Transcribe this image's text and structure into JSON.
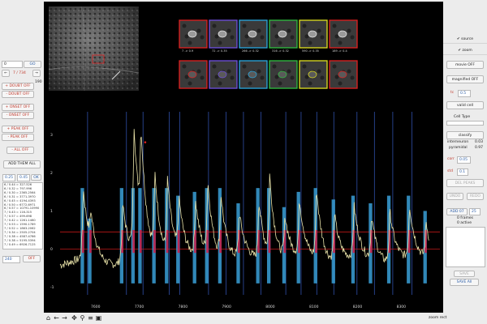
{
  "left": {
    "frame_left_value": "0",
    "go_label": "GO",
    "nav_prev": "←",
    "nav_next": "→",
    "frame_counter": "7 / 734",
    "side_value": "190",
    "doubt_on_label": "+ DOUBT OFF",
    "doubt_off_label": "- DOUBT OFF",
    "onset_on_label": "+ ONSET OFF",
    "onset_off_label": "- ONSET OFF",
    "peak_on_label": "+ PEAK OFF",
    "peak_off_label": "- PEAK OFF",
    "all_off_label": "- ALL OFF",
    "add_all_label": "ADD THEM ALL",
    "thresh_low": "0.25",
    "thresh_high": "0.45",
    "ok_label": "OK",
    "list_rows": [
      "6 / 0.44 = 327-526",
      "6 / 0.32 = 797-996",
      "6 / 0.30 = 2365-2564",
      "6 / 0.31 = 3771-3970",
      "6 / 0.45 = 4194-4393",
      "6 / 0.50 = 6772-6971",
      "6 / 0.57 = 10791-10990",
      "7 / 0.43 = 116-315",
      "7 / 0.57 = 499-698",
      "7 / 0.42 = 1261-1460",
      "7 / 0.53 = 1590-1789",
      "7 / 0.52 = 1863-2062",
      "7 / 0.34 = 2505-2704",
      "7 / 0.38 = 4587-4786",
      "7 / 0.38 = 5195-5394",
      "7 / 0.49 = 6926-7125"
    ],
    "bottom_value": "240",
    "off_label": "OFF"
  },
  "thumbnails": {
    "top_row": [
      "7 -> 0.9",
      "72 -> 0.35",
      "266 -> 0.32",
      "316 -> 0.32",
      "590 -> 0.35",
      "189 -> 0.4"
    ],
    "border_colors": [
      "#e02020",
      "#7050e0",
      "#2aa9e0",
      "#30c040",
      "#e0e020",
      "#e02020"
    ]
  },
  "chart_data": {
    "type": "line",
    "x_ticks": [
      "7600",
      "7700",
      "7800",
      "7900",
      "8000",
      "8100",
      "8200",
      "8300"
    ],
    "y_ticks": [
      "3",
      "2",
      "1",
      "0",
      "-1"
    ],
    "ylim": [
      -1.2,
      3.6
    ],
    "xlim": [
      7520,
      8390
    ],
    "series": [
      {
        "color": "#e8e2a8",
        "peaks": [
          [
            7573,
            1.9
          ],
          [
            7590,
            0.8
          ],
          [
            7663,
            1.6
          ],
          [
            7689,
            3.4
          ],
          [
            7705,
            2.4
          ],
          [
            7737,
            2.1
          ],
          [
            7766,
            2.0
          ],
          [
            7792,
            1.4
          ],
          [
            7830,
            1.5
          ],
          [
            7858,
            2.0
          ],
          [
            7888,
            1.7
          ],
          [
            7930,
            1.2
          ],
          [
            7975,
            1.6
          ],
          [
            8000,
            2.1
          ],
          [
            8035,
            1.1
          ],
          [
            8068,
            1.5
          ],
          [
            8107,
            1.9
          ],
          [
            8148,
            1.3
          ],
          [
            8193,
            1.4
          ],
          [
            8233,
            1.2
          ],
          [
            8275,
            1.4
          ],
          [
            8320,
            1.4
          ],
          [
            8358,
            1.0
          ]
        ]
      }
    ],
    "onset_lines": [
      7583,
      7672,
      7710,
      7770,
      7794,
      7860,
      7900,
      7940,
      7980,
      8037,
      8072,
      8108,
      8147,
      8200,
      8240,
      8282,
      8326
    ],
    "red_threshold_top": 0.45,
    "red_threshold_base": 0.0
  },
  "right": {
    "source_label": "source",
    "zoom_label": "zoom",
    "movie_label": "movie OFF",
    "magnified_label": "magnified OFF",
    "tc_value": "0.5",
    "tc_label": "tc",
    "valid_label": "valid cell",
    "cell_type_label": "Cell Type",
    "cell_type_value": "",
    "classify_label": "classify",
    "interneuron_label": "interneuron",
    "interneuron_value": "0.03",
    "pyramidal_label": "pyramidal",
    "pyramidal_value": "0.97",
    "corr_label": "corr",
    "corr_value": "0.05",
    "std_label": "std",
    "std_value": "0.1",
    "del_peaks_label": "DEL PEAKS",
    "undo_label": "UNDO",
    "redo_label": "REDO",
    "add_label": "ADD 07",
    "add_value": "25",
    "frames_label": "0 frames",
    "active_label": "0 active",
    "save_label": "SAVE",
    "save_all_label": "SAVE All"
  },
  "toolbar": {
    "status": "zoom rect"
  }
}
